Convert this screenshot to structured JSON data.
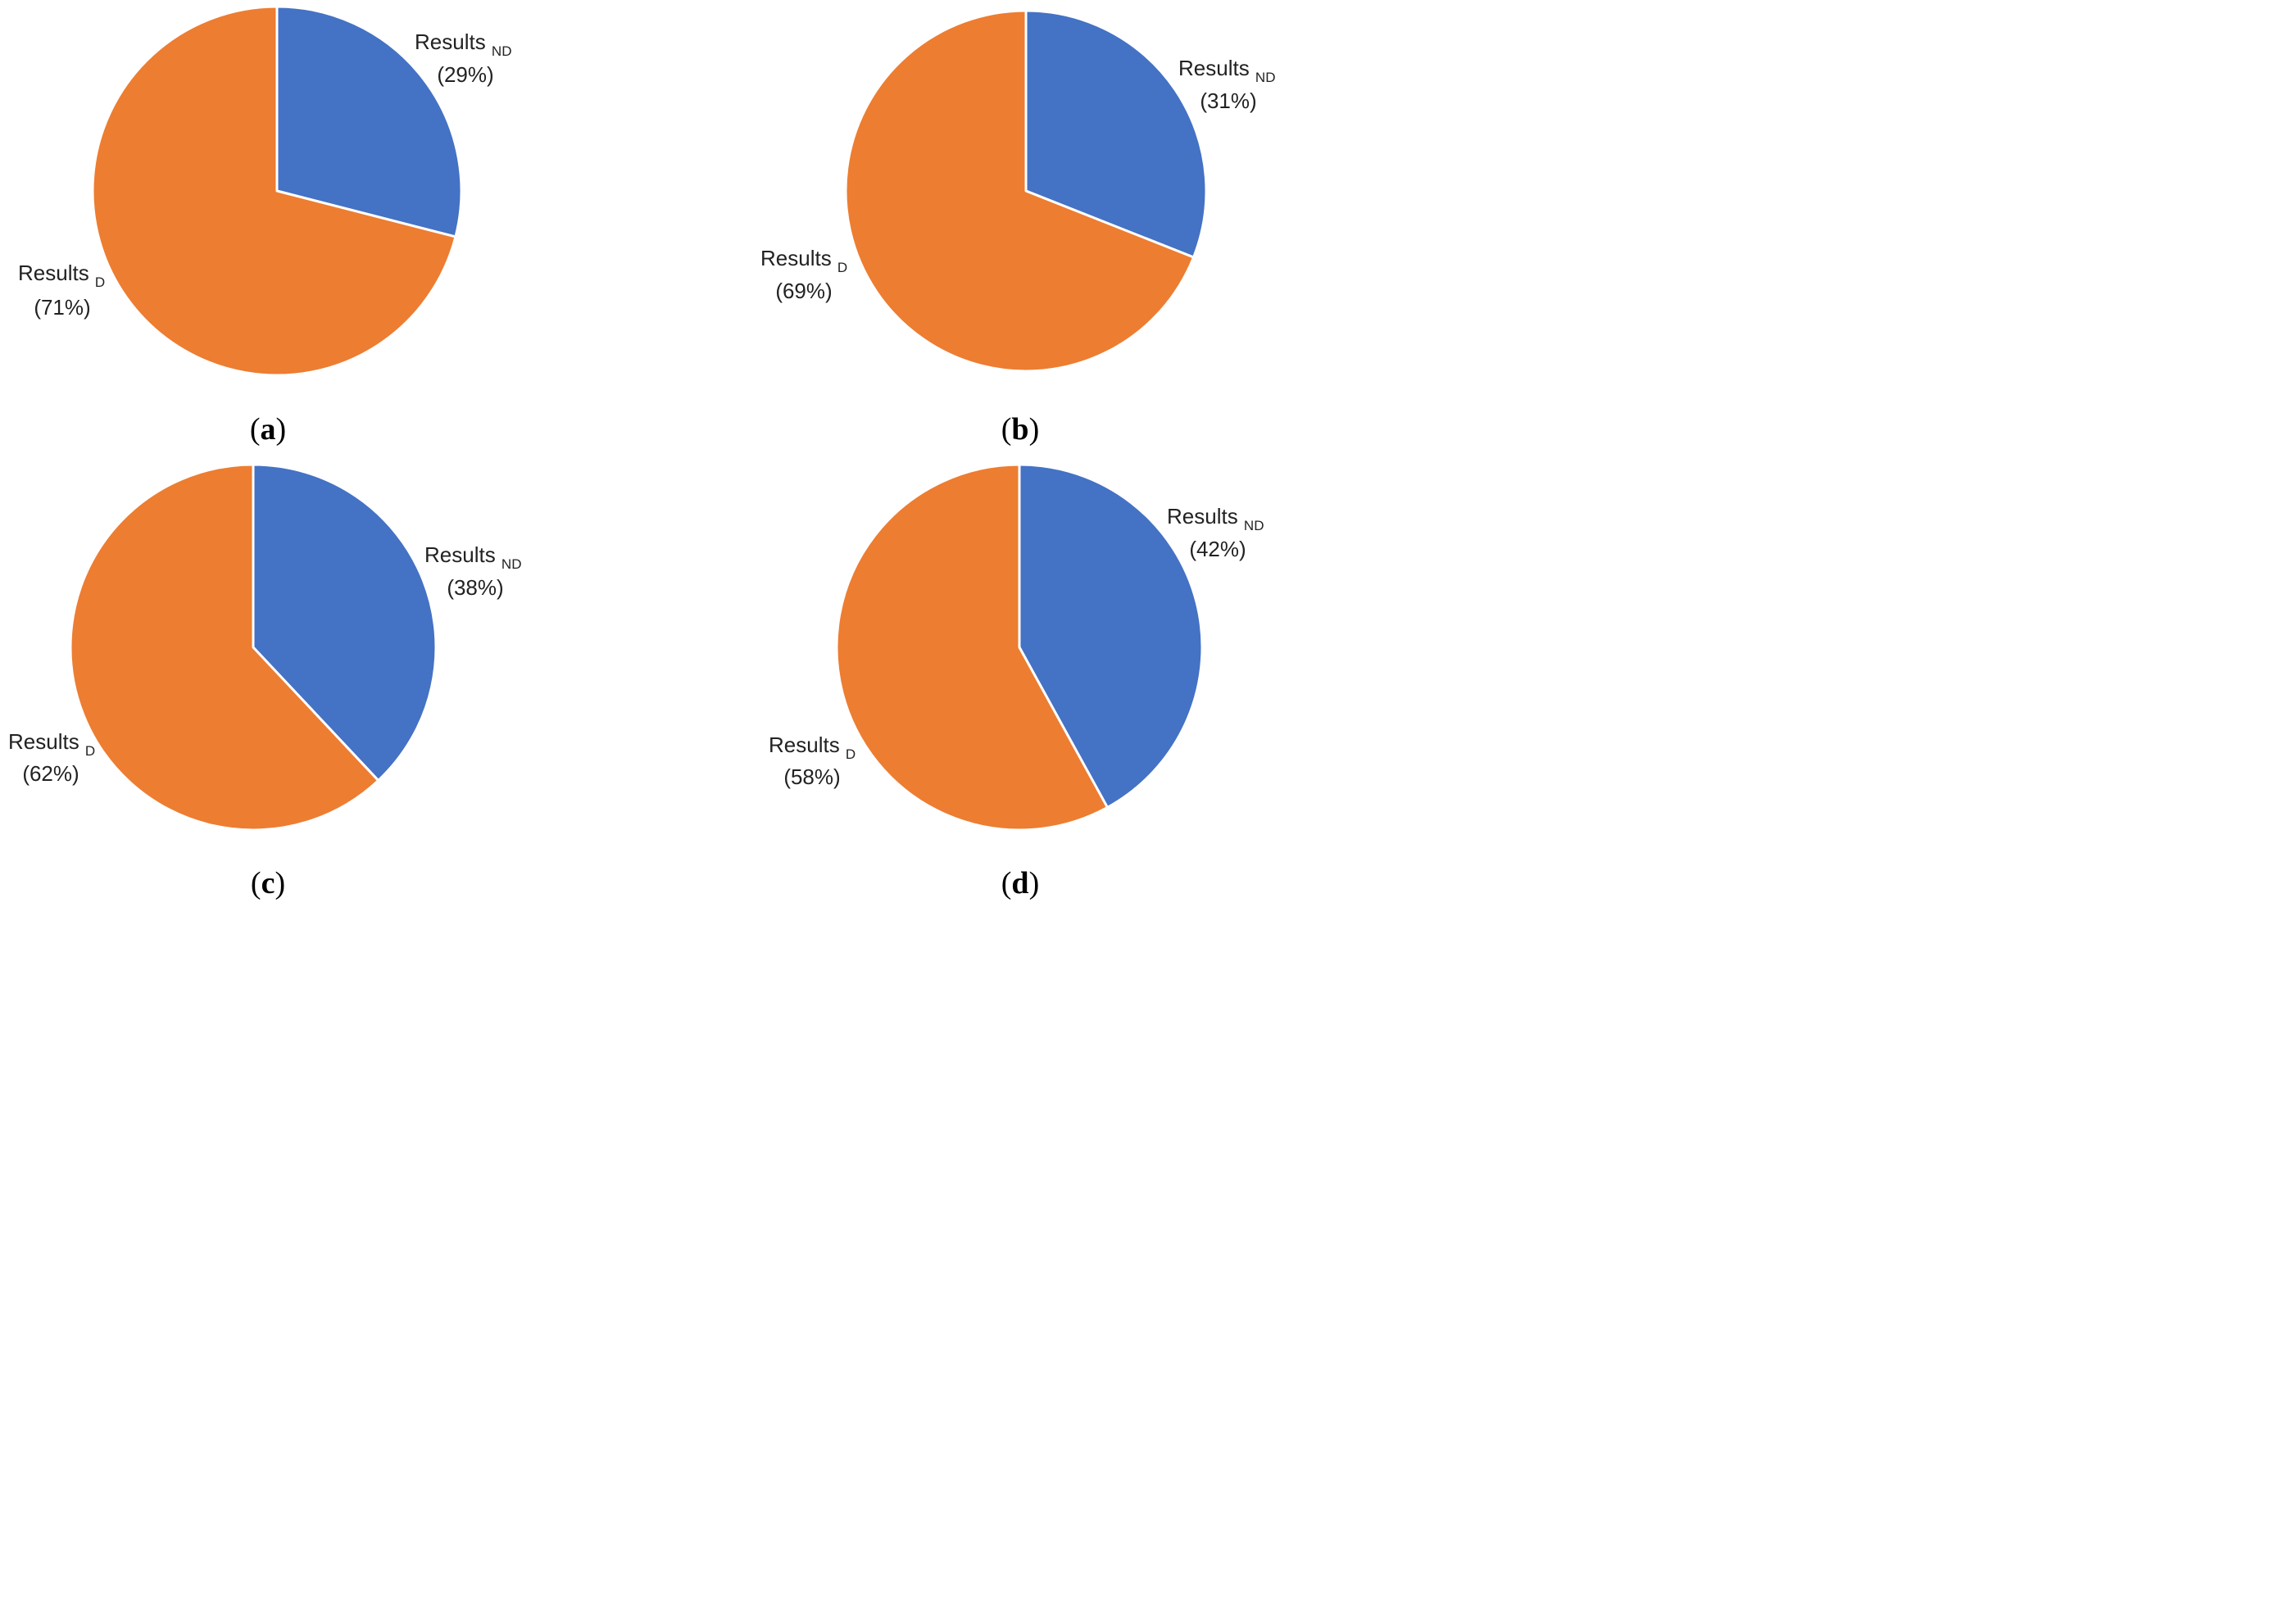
{
  "colors": {
    "ND": "#4472C4",
    "D": "#ED7D31",
    "separator": "#ffffff"
  },
  "chart_data": [
    {
      "type": "pie",
      "caption": "a",
      "slices": [
        {
          "label": "Results",
          "subscript": "ND",
          "value": 29,
          "display": "(29%)",
          "color": "#4472C4"
        },
        {
          "label": "Results",
          "subscript": "D",
          "value": 71,
          "display": "(71%)",
          "color": "#ED7D31"
        }
      ]
    },
    {
      "type": "pie",
      "caption": "b",
      "slices": [
        {
          "label": "Results",
          "subscript": "ND",
          "value": 31,
          "display": "(31%)",
          "color": "#4472C4"
        },
        {
          "label": "Results",
          "subscript": "D",
          "value": 69,
          "display": "(69%)",
          "color": "#ED7D31"
        }
      ]
    },
    {
      "type": "pie",
      "caption": "c",
      "slices": [
        {
          "label": "Results",
          "subscript": "ND",
          "value": 38,
          "display": "(38%)",
          "color": "#4472C4"
        },
        {
          "label": "Results",
          "subscript": "D",
          "value": 62,
          "display": "(62%)",
          "color": "#ED7D31"
        }
      ]
    },
    {
      "type": "pie",
      "caption": "d",
      "slices": [
        {
          "label": "Results",
          "subscript": "ND",
          "value": 42,
          "display": "(42%)",
          "color": "#4472C4"
        },
        {
          "label": "Results",
          "subscript": "D",
          "value": 58,
          "display": "(58%)",
          "color": "#ED7D31"
        }
      ]
    }
  ]
}
